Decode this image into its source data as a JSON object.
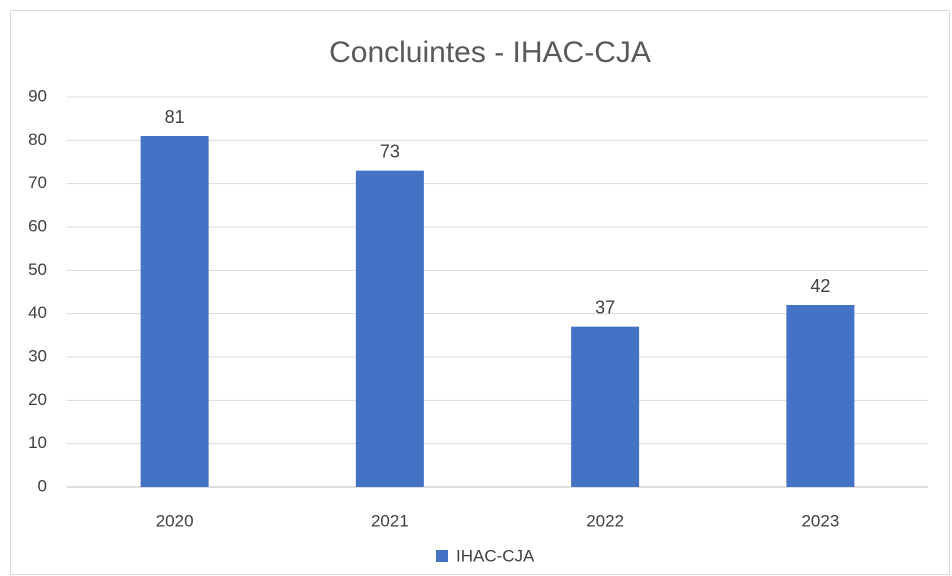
{
  "chart_data": {
    "type": "bar",
    "title": "Concluintes - IHAC-CJA",
    "categories": [
      "2020",
      "2021",
      "2022",
      "2023"
    ],
    "series": [
      {
        "name": "IHAC-CJA",
        "color": "#4472c4",
        "values": [
          81,
          73,
          37,
          42
        ]
      }
    ],
    "ylim": [
      0,
      90
    ],
    "yticks": [
      0,
      10,
      20,
      30,
      40,
      50,
      60,
      70,
      80,
      90
    ],
    "grid": true,
    "legend": "bottom"
  }
}
